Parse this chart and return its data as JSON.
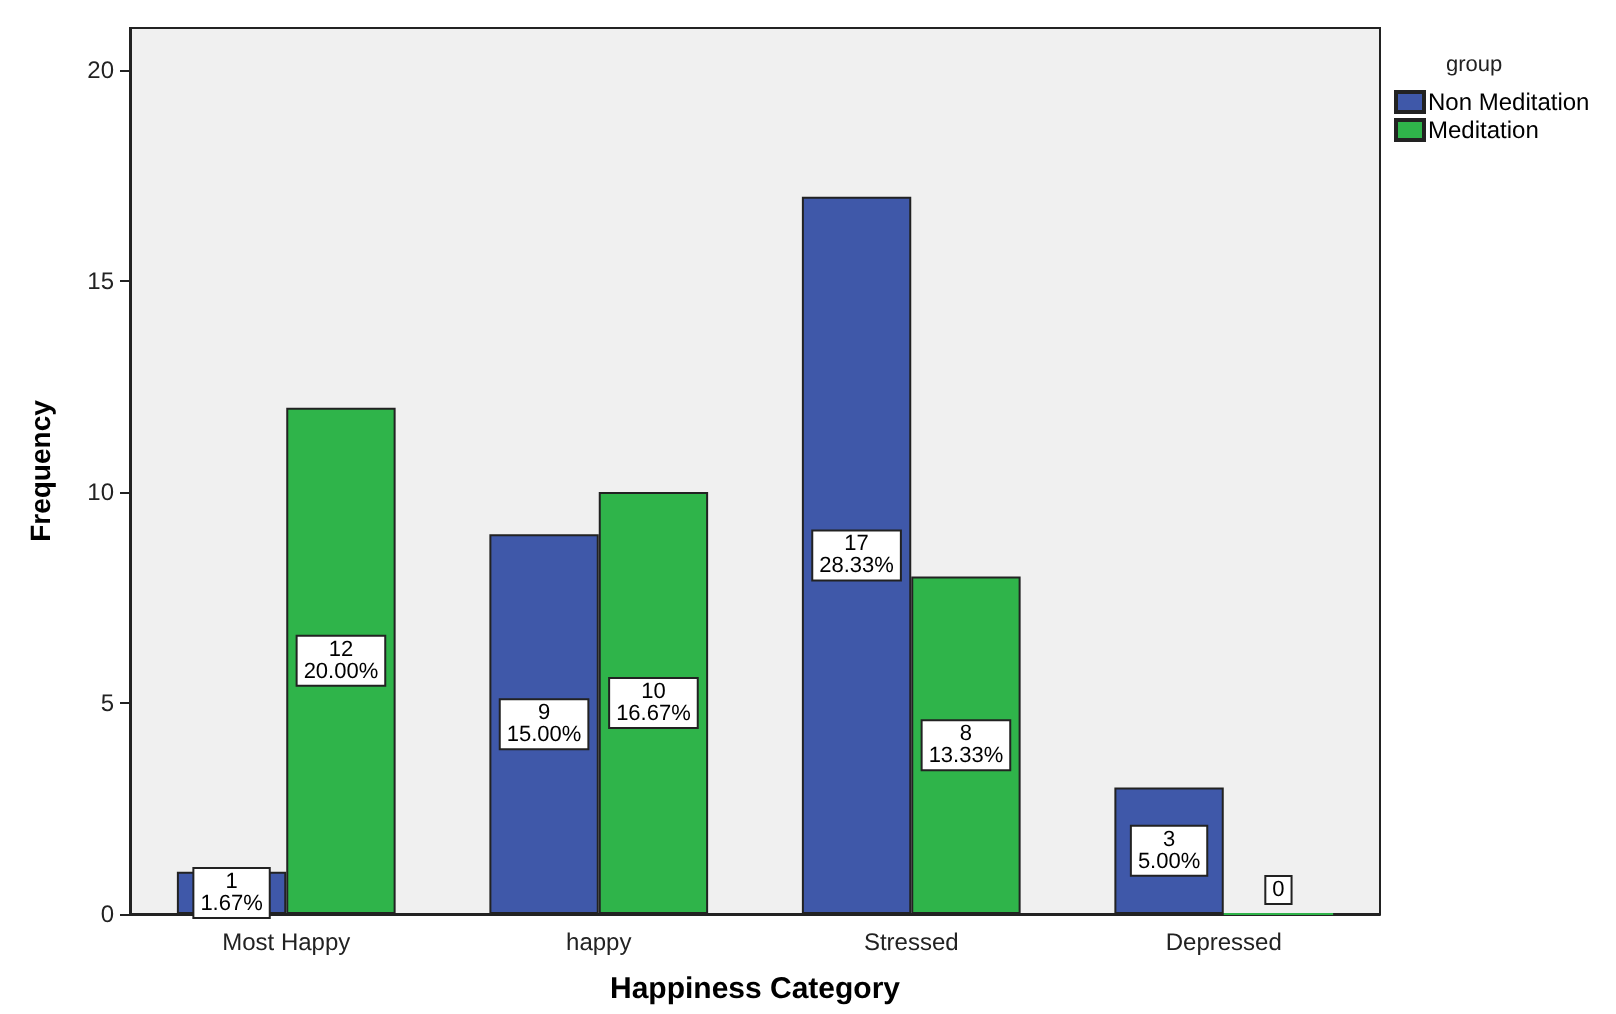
{
  "chart_data": {
    "type": "bar",
    "xlabel": "Happiness Category",
    "ylabel": "Frequency",
    "legend_title": "group",
    "categories": [
      "Most Happy",
      "happy",
      "Stressed",
      "Depressed"
    ],
    "series": [
      {
        "name": "Non Meditation",
        "color": "#3f58a9",
        "values": [
          1,
          9,
          17,
          3
        ],
        "value_labels": [
          "1\n1.67%",
          "9\n15.00%",
          "17\n28.33%",
          "3\n5.00%"
        ]
      },
      {
        "name": "Meditation",
        "color": "#2fb44a",
        "values": [
          12,
          10,
          8,
          0
        ],
        "value_labels": [
          "12\n20.00%",
          "10\n16.67%",
          "8\n13.33%",
          "0"
        ]
      }
    ],
    "ylim": [
      0,
      21
    ],
    "yticks": [
      0,
      5,
      10,
      15,
      20
    ],
    "grid": false,
    "legend": "top right"
  }
}
